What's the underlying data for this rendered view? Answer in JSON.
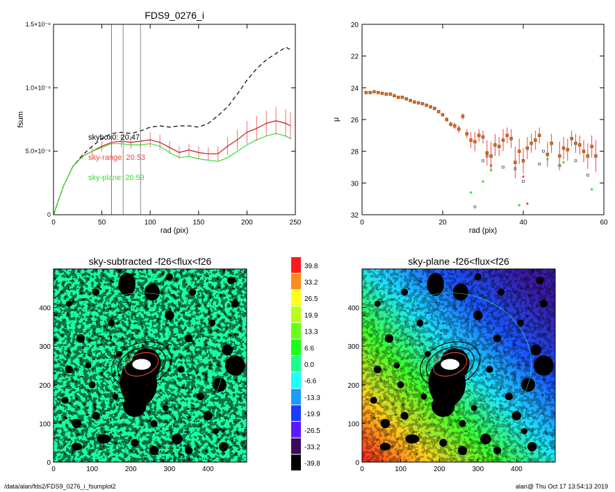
{
  "footer": {
    "path": "/data/alan/fds2/FDS9_0276_i_fsumplot2",
    "stamp": "alan@  Thu Oct 17 13:54:13 2019"
  },
  "chart_data": [
    {
      "type": "line",
      "title": "FDS9_0276_i",
      "xlabel": "rad (pix)",
      "ylabel": "fsum",
      "xlim": [
        0,
        250
      ],
      "ylim": [
        0,
        1.5e-08
      ],
      "xticks": [
        0,
        50,
        100,
        150,
        200,
        250
      ],
      "yticks": [
        {
          "value": 0,
          "label": "0"
        },
        {
          "value": 5e-09,
          "label": "5.0×10⁻⁹"
        },
        {
          "value": 1e-08,
          "label": "1.0×10⁻⁸"
        },
        {
          "value": 1.5e-08,
          "label": "1.5×10⁻⁸"
        }
      ],
      "vlines": [
        {
          "x": 60,
          "color": "#e8473e"
        },
        {
          "x": 72,
          "color": "#8a8a8a"
        },
        {
          "x": 90,
          "color": "#8a8a8a"
        }
      ],
      "annotations": [
        {
          "text": "skybox0: 20.47",
          "color": "#000000"
        },
        {
          "text": "sky-range: 20.53",
          "color": "#e8473e"
        },
        {
          "text": "sky-plane: 20.59",
          "color": "#33dd33"
        }
      ],
      "series": [
        {
          "style": "dashed",
          "color": "#000000",
          "x": [
            0,
            10,
            20,
            30,
            40,
            50,
            60,
            70,
            80,
            90,
            100,
            110,
            120,
            130,
            140,
            150,
            160,
            170,
            180,
            190,
            200,
            210,
            220,
            230,
            240,
            245
          ],
          "y": [
            0,
            2.2e-09,
            3.8e-09,
            4.7e-09,
            5.4e-09,
            6e-09,
            6.4e-09,
            6.5e-09,
            6.4e-09,
            6.6e-09,
            6.9e-09,
            7e-09,
            6.9e-09,
            7e-09,
            7e-09,
            6.9e-09,
            7.2e-09,
            7.8e-09,
            8.5e-09,
            9.5e-09,
            1.06e-08,
            1.15e-08,
            1.22e-08,
            1.27e-08,
            1.32e-08,
            1.3e-08
          ]
        },
        {
          "style": "solid",
          "color": "#c01818",
          "errcolor": "#f07070",
          "x": [
            0,
            10,
            20,
            30,
            40,
            50,
            60,
            70,
            80,
            90,
            100,
            110,
            120,
            130,
            140,
            150,
            160,
            170,
            180,
            190,
            200,
            210,
            220,
            230,
            240,
            245
          ],
          "y": [
            0,
            2.2e-09,
            3.8e-09,
            4.6e-09,
            5e-09,
            5.4e-09,
            5.7e-09,
            5.8e-09,
            5.7e-09,
            5.8e-09,
            5.9e-09,
            5.7e-09,
            5.3e-09,
            4.9e-09,
            5.1e-09,
            4.9e-09,
            4.8e-09,
            4.8e-09,
            5.4e-09,
            5.9e-09,
            6.5e-09,
            6.8e-09,
            7.2e-09,
            7.4e-09,
            7.2e-09,
            7e-09
          ],
          "err": [
            0,
            0,
            1e-10,
            2e-10,
            3e-10,
            4e-10,
            5e-10,
            5e-10,
            5e-10,
            5e-10,
            6e-10,
            6e-10,
            5e-10,
            5e-10,
            5e-10,
            5e-10,
            5e-10,
            6e-10,
            7e-10,
            8e-10,
            9e-10,
            1e-09,
            1e-09,
            1.1e-09,
            1.1e-09,
            1.1e-09
          ]
        },
        {
          "style": "solid",
          "color": "#33dd33",
          "x": [
            0,
            10,
            20,
            30,
            40,
            50,
            60,
            70,
            80,
            90,
            100,
            110,
            120,
            130,
            140,
            150,
            160,
            170,
            180,
            190,
            200,
            210,
            220,
            230,
            240,
            245
          ],
          "y": [
            0,
            2.2e-09,
            3.8e-09,
            4.6e-09,
            5e-09,
            5.3e-09,
            5.6e-09,
            5.6e-09,
            5.5e-09,
            5.5e-09,
            5.6e-09,
            5.4e-09,
            4.9e-09,
            4.5e-09,
            4.6e-09,
            4.4e-09,
            4.3e-09,
            4.2e-09,
            4.5e-09,
            5e-09,
            5.5e-09,
            5.9e-09,
            6.2e-09,
            6.4e-09,
            6.2e-09,
            6e-09
          ]
        }
      ]
    },
    {
      "type": "scatter",
      "xlabel": "rad (pix)",
      "ylabel": "μ",
      "xlim": [
        0,
        60
      ],
      "ylim": [
        20,
        32
      ],
      "y_reversed": true,
      "xticks": [
        0,
        20,
        40,
        60
      ],
      "yticks": [
        20,
        22,
        24,
        26,
        28,
        30,
        32
      ],
      "points": [
        {
          "x": 1,
          "y": 24.3,
          "e": 0.05
        },
        {
          "x": 2,
          "y": 24.3,
          "e": 0.05
        },
        {
          "x": 3,
          "y": 24.25,
          "e": 0.05
        },
        {
          "x": 4,
          "y": 24.3,
          "e": 0.05
        },
        {
          "x": 5,
          "y": 24.35,
          "e": 0.05
        },
        {
          "x": 6,
          "y": 24.4,
          "e": 0.05
        },
        {
          "x": 7,
          "y": 24.4,
          "e": 0.05
        },
        {
          "x": 8,
          "y": 24.5,
          "e": 0.05
        },
        {
          "x": 9,
          "y": 24.6,
          "e": 0.05
        },
        {
          "x": 10,
          "y": 24.6,
          "e": 0.05
        },
        {
          "x": 11,
          "y": 24.7,
          "e": 0.05
        },
        {
          "x": 12,
          "y": 24.8,
          "e": 0.05
        },
        {
          "x": 13,
          "y": 24.9,
          "e": 0.05
        },
        {
          "x": 14,
          "y": 24.95,
          "e": 0.05
        },
        {
          "x": 15,
          "y": 25.0,
          "e": 0.05
        },
        {
          "x": 16,
          "y": 25.1,
          "e": 0.05
        },
        {
          "x": 17,
          "y": 25.2,
          "e": 0.1
        },
        {
          "x": 18,
          "y": 25.3,
          "e": 0.1
        },
        {
          "x": 19,
          "y": 25.5,
          "e": 0.1
        },
        {
          "x": 20,
          "y": 25.7,
          "e": 0.1
        },
        {
          "x": 21,
          "y": 26.0,
          "e": 0.15
        },
        {
          "x": 22,
          "y": 26.3,
          "e": 0.15
        },
        {
          "x": 23,
          "y": 26.4,
          "e": 0.2
        },
        {
          "x": 24,
          "y": 26.6,
          "e": 0.25
        },
        {
          "x": 25,
          "y": 25.8,
          "e": 0.2
        },
        {
          "x": 26,
          "y": 26.9,
          "e": 0.3
        },
        {
          "x": 27,
          "y": 27.3,
          "e": 0.5
        },
        {
          "x": 28,
          "y": 27.4,
          "e": 0.6
        },
        {
          "x": 29,
          "y": 27.0,
          "e": 0.4
        },
        {
          "x": 30,
          "y": 27.1,
          "e": 0.4
        },
        {
          "x": 31,
          "y": 28.1,
          "e": 0.8
        },
        {
          "x": 32,
          "y": 28.3,
          "e": 0.9
        },
        {
          "x": 33,
          "y": 27.6,
          "e": 0.7
        },
        {
          "x": 34,
          "y": 27.7,
          "e": 0.6
        },
        {
          "x": 35,
          "y": 27.3,
          "e": 0.7
        },
        {
          "x": 36,
          "y": 27.0,
          "e": 0.5
        },
        {
          "x": 37,
          "y": 27.2,
          "e": 0.6
        },
        {
          "x": 38,
          "y": 28.7,
          "e": 1.0
        },
        {
          "x": 39,
          "y": 28.0,
          "e": 0.8
        },
        {
          "x": 40,
          "y": 28.6,
          "e": 0.8
        },
        {
          "x": 41,
          "y": 27.8,
          "e": 0.7
        },
        {
          "x": 42,
          "y": 27.5,
          "e": 0.6
        },
        {
          "x": 43,
          "y": 27.3,
          "e": 0.6
        },
        {
          "x": 44,
          "y": 27.0,
          "e": 0.5
        },
        {
          "x": 46,
          "y": 28.2,
          "e": 0.8
        },
        {
          "x": 47,
          "y": 27.5,
          "e": 0.6
        },
        {
          "x": 49,
          "y": 28.3,
          "e": 0.9
        },
        {
          "x": 50,
          "y": 27.8,
          "e": 0.7
        },
        {
          "x": 51,
          "y": 27.9,
          "e": 0.7
        },
        {
          "x": 52,
          "y": 27.2,
          "e": 0.5
        },
        {
          "x": 53,
          "y": 27.5,
          "e": 0.6
        },
        {
          "x": 54,
          "y": 27.6,
          "e": 0.6
        },
        {
          "x": 55,
          "y": 28.0,
          "e": 0.7
        },
        {
          "x": 56,
          "y": 28.3,
          "e": 0.8
        },
        {
          "x": 57,
          "y": 27.7,
          "e": 0.7
        },
        {
          "x": 58,
          "y": 28.3,
          "e": 1.0
        }
      ],
      "gray_points": [
        {
          "x": 28,
          "y": 31.5
        },
        {
          "x": 30,
          "y": 28.6
        },
        {
          "x": 31,
          "y": 28.3
        },
        {
          "x": 35,
          "y": 29.0
        },
        {
          "x": 38,
          "y": 29.1
        },
        {
          "x": 40,
          "y": 29.9
        },
        {
          "x": 44,
          "y": 28.8
        },
        {
          "x": 45,
          "y": 28.0
        },
        {
          "x": 49,
          "y": 28.9
        },
        {
          "x": 53,
          "y": 28.6
        },
        {
          "x": 56,
          "y": 29.5
        }
      ],
      "green_points": [
        {
          "x": 27,
          "y": 30.6
        },
        {
          "x": 30,
          "y": 29.9
        },
        {
          "x": 32,
          "y": 29.2
        },
        {
          "x": 39,
          "y": 31.4
        },
        {
          "x": 46,
          "y": 28.5
        },
        {
          "x": 50,
          "y": 28.7
        },
        {
          "x": 57,
          "y": 30.4
        }
      ],
      "red_points": [
        {
          "x": 32,
          "y": 28.9
        },
        {
          "x": 40,
          "y": 29.6
        },
        {
          "x": 41,
          "y": 31.3
        }
      ]
    },
    {
      "type": "heatmap",
      "title": "sky-subtracted -f26<flux<f26",
      "xlim": [
        0,
        500
      ],
      "ylim": [
        0,
        500
      ],
      "xticks": [
        0,
        100,
        200,
        300,
        400
      ],
      "yticks": [
        0,
        100,
        200,
        300,
        400
      ]
    },
    {
      "type": "heatmap",
      "title": "sky-plane -f26<flux<f26",
      "xlim": [
        0,
        500
      ],
      "ylim": [
        0,
        500
      ],
      "xticks": [
        0,
        100,
        200,
        300,
        400
      ],
      "yticks": [
        0,
        100,
        200,
        300,
        400
      ]
    }
  ],
  "colorbar": {
    "levels": [
      {
        "label": "39.8",
        "color": "#ff1a1a"
      },
      {
        "label": "33.2",
        "color": "#ff8c1a"
      },
      {
        "label": "26.5",
        "color": "#ffff1a"
      },
      {
        "label": "19.9",
        "color": "#b8ff1a"
      },
      {
        "label": "13.3",
        "color": "#66ff1a"
      },
      {
        "label": "6.6",
        "color": "#1aff1a"
      },
      {
        "label": "0.0",
        "color": "#1aff8c"
      },
      {
        "label": "-6.6",
        "color": "#1affff"
      },
      {
        "label": "-13.3",
        "color": "#1a9cff"
      },
      {
        "label": "-19.9",
        "color": "#1a3cff"
      },
      {
        "label": "-26.5",
        "color": "#5a1aff"
      },
      {
        "label": "-33.2",
        "color": "#3c0a5a"
      },
      {
        "label": "-39.8",
        "color": "#000000"
      }
    ]
  }
}
